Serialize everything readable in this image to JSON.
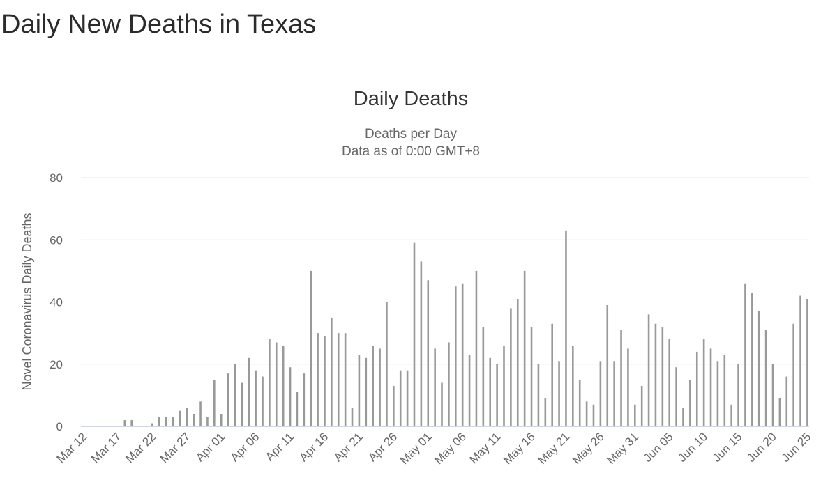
{
  "page": {
    "heading": "Daily New Deaths in Texas"
  },
  "chart_data": {
    "type": "bar",
    "title": "Daily Deaths",
    "subtitle": [
      "Deaths per Day",
      "Data as of 0:00 GMT+8"
    ],
    "ylabel": "Novel Coronavirus Daily Deaths",
    "xlabel": "",
    "ylim": [
      0,
      80
    ],
    "yticks": [
      0,
      20,
      40,
      60,
      80
    ],
    "grid": true,
    "legend": "none",
    "colors": {
      "bar": "#999999",
      "grid": "#e6e6e6",
      "baseline": "#ccd6eb"
    },
    "tick_labels": [
      "Mar 12",
      "Mar 17",
      "Mar 22",
      "Mar 27",
      "Apr 01",
      "Apr 06",
      "Apr 11",
      "Apr 16",
      "Apr 21",
      "Apr 26",
      "May 01",
      "May 06",
      "May 11",
      "May 16",
      "May 21",
      "May 26",
      "May 31",
      "Jun 05",
      "Jun 10",
      "Jun 15",
      "Jun 20",
      "Jun 25"
    ],
    "categories": [
      "Mar 12",
      "Mar 13",
      "Mar 14",
      "Mar 15",
      "Mar 16",
      "Mar 17",
      "Mar 18",
      "Mar 19",
      "Mar 20",
      "Mar 21",
      "Mar 22",
      "Mar 23",
      "Mar 24",
      "Mar 25",
      "Mar 26",
      "Mar 27",
      "Mar 28",
      "Mar 29",
      "Mar 30",
      "Mar 31",
      "Apr 01",
      "Apr 02",
      "Apr 03",
      "Apr 04",
      "Apr 05",
      "Apr 06",
      "Apr 07",
      "Apr 08",
      "Apr 09",
      "Apr 10",
      "Apr 11",
      "Apr 12",
      "Apr 13",
      "Apr 14",
      "Apr 15",
      "Apr 16",
      "Apr 17",
      "Apr 18",
      "Apr 19",
      "Apr 20",
      "Apr 21",
      "Apr 22",
      "Apr 23",
      "Apr 24",
      "Apr 25",
      "Apr 26",
      "Apr 27",
      "Apr 28",
      "Apr 29",
      "Apr 30",
      "May 01",
      "May 02",
      "May 03",
      "May 04",
      "May 05",
      "May 06",
      "May 07",
      "May 08",
      "May 09",
      "May 10",
      "May 11",
      "May 12",
      "May 13",
      "May 14",
      "May 15",
      "May 16",
      "May 17",
      "May 18",
      "May 19",
      "May 20",
      "May 21",
      "May 22",
      "May 23",
      "May 24",
      "May 25",
      "May 26",
      "May 27",
      "May 28",
      "May 29",
      "May 30",
      "May 31",
      "Jun 01",
      "Jun 02",
      "Jun 03",
      "Jun 04",
      "Jun 05",
      "Jun 06",
      "Jun 07",
      "Jun 08",
      "Jun 09",
      "Jun 10",
      "Jun 11",
      "Jun 12",
      "Jun 13",
      "Jun 14",
      "Jun 15",
      "Jun 16",
      "Jun 17",
      "Jun 18",
      "Jun 19",
      "Jun 20",
      "Jun 21",
      "Jun 22",
      "Jun 23",
      "Jun 24",
      "Jun 25"
    ],
    "values": [
      0,
      0,
      0,
      0,
      0,
      0,
      2,
      2,
      0,
      0,
      1,
      3,
      3,
      3,
      5,
      6,
      4,
      8,
      3,
      15,
      4,
      17,
      20,
      14,
      22,
      18,
      16,
      28,
      27,
      26,
      19,
      11,
      17,
      50,
      30,
      29,
      35,
      30,
      30,
      6,
      23,
      22,
      26,
      25,
      40,
      13,
      18,
      18,
      59,
      53,
      47,
      25,
      14,
      27,
      45,
      46,
      23,
      50,
      32,
      22,
      20,
      26,
      38,
      41,
      50,
      32,
      20,
      9,
      33,
      21,
      63,
      26,
      15,
      8,
      7,
      21,
      39,
      21,
      31,
      25,
      7,
      13,
      36,
      33,
      32,
      28,
      19,
      6,
      15,
      24,
      28,
      25,
      21,
      23,
      7,
      20,
      46,
      43,
      37,
      31,
      20,
      9,
      16,
      33,
      42,
      41
    ]
  }
}
